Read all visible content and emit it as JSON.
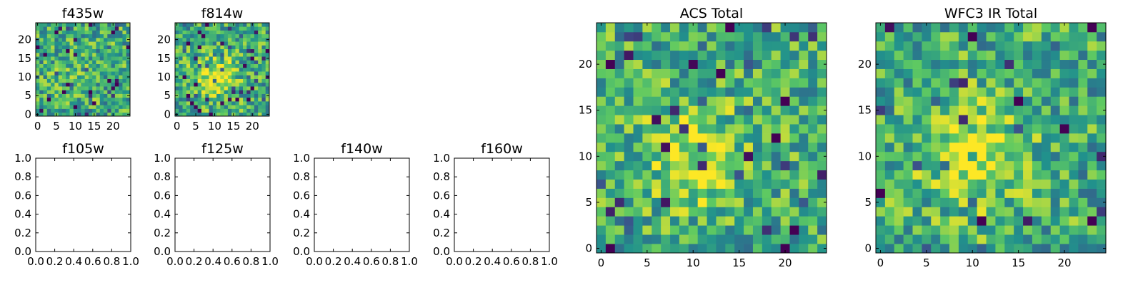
{
  "colormap": [
    "#440154",
    "#3b528b",
    "#21918c",
    "#5ec962",
    "#fde725"
  ],
  "chart_data": [
    {
      "id": "f435w",
      "type": "heatmap",
      "title": "f435w",
      "grid_size": 25,
      "xlim": [
        -0.5,
        24.5
      ],
      "ylim": [
        -0.5,
        24.5
      ],
      "xticks": [
        0,
        5,
        10,
        15,
        20
      ],
      "yticks": [
        0,
        5,
        10,
        15,
        20
      ],
      "xtick_labels": [
        "0",
        "5",
        "10",
        "15",
        "20"
      ],
      "ytick_labels": [
        "0",
        "5",
        "10",
        "15",
        "20"
      ],
      "value_range": [
        0,
        1
      ],
      "seed": 11,
      "center_boost": 0.05
    },
    {
      "id": "f814w",
      "type": "heatmap",
      "title": "f814w",
      "grid_size": 25,
      "xlim": [
        -0.5,
        24.5
      ],
      "ylim": [
        -0.5,
        24.5
      ],
      "xticks": [
        0,
        5,
        10,
        15,
        20
      ],
      "yticks": [
        0,
        5,
        10,
        15,
        20
      ],
      "xtick_labels": [
        "0",
        "5",
        "10",
        "15",
        "20"
      ],
      "ytick_labels": [
        "0",
        "5",
        "10",
        "15",
        "20"
      ],
      "value_range": [
        0,
        1
      ],
      "seed": 23,
      "center_boost": 0.35
    },
    {
      "id": "acs_total",
      "type": "heatmap",
      "title": "ACS Total",
      "grid_size": 25,
      "xlim": [
        -0.5,
        24.5
      ],
      "ylim": [
        -0.5,
        24.5
      ],
      "xticks": [
        0,
        5,
        10,
        15,
        20
      ],
      "yticks": [
        0,
        5,
        10,
        15,
        20
      ],
      "xtick_labels": [
        "0",
        "5",
        "10",
        "15",
        "20"
      ],
      "ytick_labels": [
        "0",
        "5",
        "10",
        "15",
        "20"
      ],
      "value_range": [
        0,
        1
      ],
      "seed": 37,
      "center_boost": 0.3
    },
    {
      "id": "wfc3_ir_total",
      "type": "heatmap",
      "title": "WFC3 IR Total",
      "grid_size": 25,
      "xlim": [
        -0.5,
        24.5
      ],
      "ylim": [
        -0.5,
        24.5
      ],
      "xticks": [
        0,
        5,
        10,
        15,
        20
      ],
      "yticks": [
        0,
        5,
        10,
        15,
        20
      ],
      "xtick_labels": [
        "0",
        "5",
        "10",
        "15",
        "20"
      ],
      "ytick_labels": [
        "0",
        "5",
        "10",
        "15",
        "20"
      ],
      "value_range": [
        0,
        1
      ],
      "seed": 53,
      "center_boost": 0.35
    },
    {
      "id": "f105w",
      "type": "heatmap",
      "title": "f105w",
      "empty": true,
      "xlim": [
        0,
        1
      ],
      "ylim": [
        0,
        1
      ],
      "xticks": [
        0,
        0.2,
        0.4,
        0.6,
        0.8,
        1.0
      ],
      "yticks": [
        0,
        0.2,
        0.4,
        0.6,
        0.8,
        1.0
      ],
      "xtick_labels": [
        "0.0",
        "0.2",
        "0.4",
        "0.6",
        "0.8",
        "1.0"
      ],
      "ytick_labels": [
        "0.0",
        "0.2",
        "0.4",
        "0.6",
        "0.8",
        "1.0"
      ]
    },
    {
      "id": "f125w",
      "type": "heatmap",
      "title": "f125w",
      "empty": true,
      "xlim": [
        0,
        1
      ],
      "ylim": [
        0,
        1
      ],
      "xticks": [
        0,
        0.2,
        0.4,
        0.6,
        0.8,
        1.0
      ],
      "yticks": [
        0,
        0.2,
        0.4,
        0.6,
        0.8,
        1.0
      ],
      "xtick_labels": [
        "0.0",
        "0.2",
        "0.4",
        "0.6",
        "0.8",
        "1.0"
      ],
      "ytick_labels": [
        "0.0",
        "0.2",
        "0.4",
        "0.6",
        "0.8",
        "1.0"
      ]
    },
    {
      "id": "f140w",
      "type": "heatmap",
      "title": "f140w",
      "empty": true,
      "xlim": [
        0,
        1
      ],
      "ylim": [
        0,
        1
      ],
      "xticks": [
        0,
        0.2,
        0.4,
        0.6,
        0.8,
        1.0
      ],
      "yticks": [
        0,
        0.2,
        0.4,
        0.6,
        0.8,
        1.0
      ],
      "xtick_labels": [
        "0.0",
        "0.2",
        "0.4",
        "0.6",
        "0.8",
        "1.0"
      ],
      "ytick_labels": [
        "0.0",
        "0.2",
        "0.4",
        "0.6",
        "0.8",
        "1.0"
      ]
    },
    {
      "id": "f160w",
      "type": "heatmap",
      "title": "f160w",
      "empty": true,
      "xlim": [
        0,
        1
      ],
      "ylim": [
        0,
        1
      ],
      "xticks": [
        0,
        0.2,
        0.4,
        0.6,
        0.8,
        1.0
      ],
      "yticks": [
        0,
        0.2,
        0.4,
        0.6,
        0.8,
        1.0
      ],
      "xtick_labels": [
        "0.0",
        "0.2",
        "0.4",
        "0.6",
        "0.8",
        "1.0"
      ],
      "ytick_labels": [
        "0.0",
        "0.2",
        "0.4",
        "0.6",
        "0.8",
        "1.0"
      ]
    }
  ]
}
